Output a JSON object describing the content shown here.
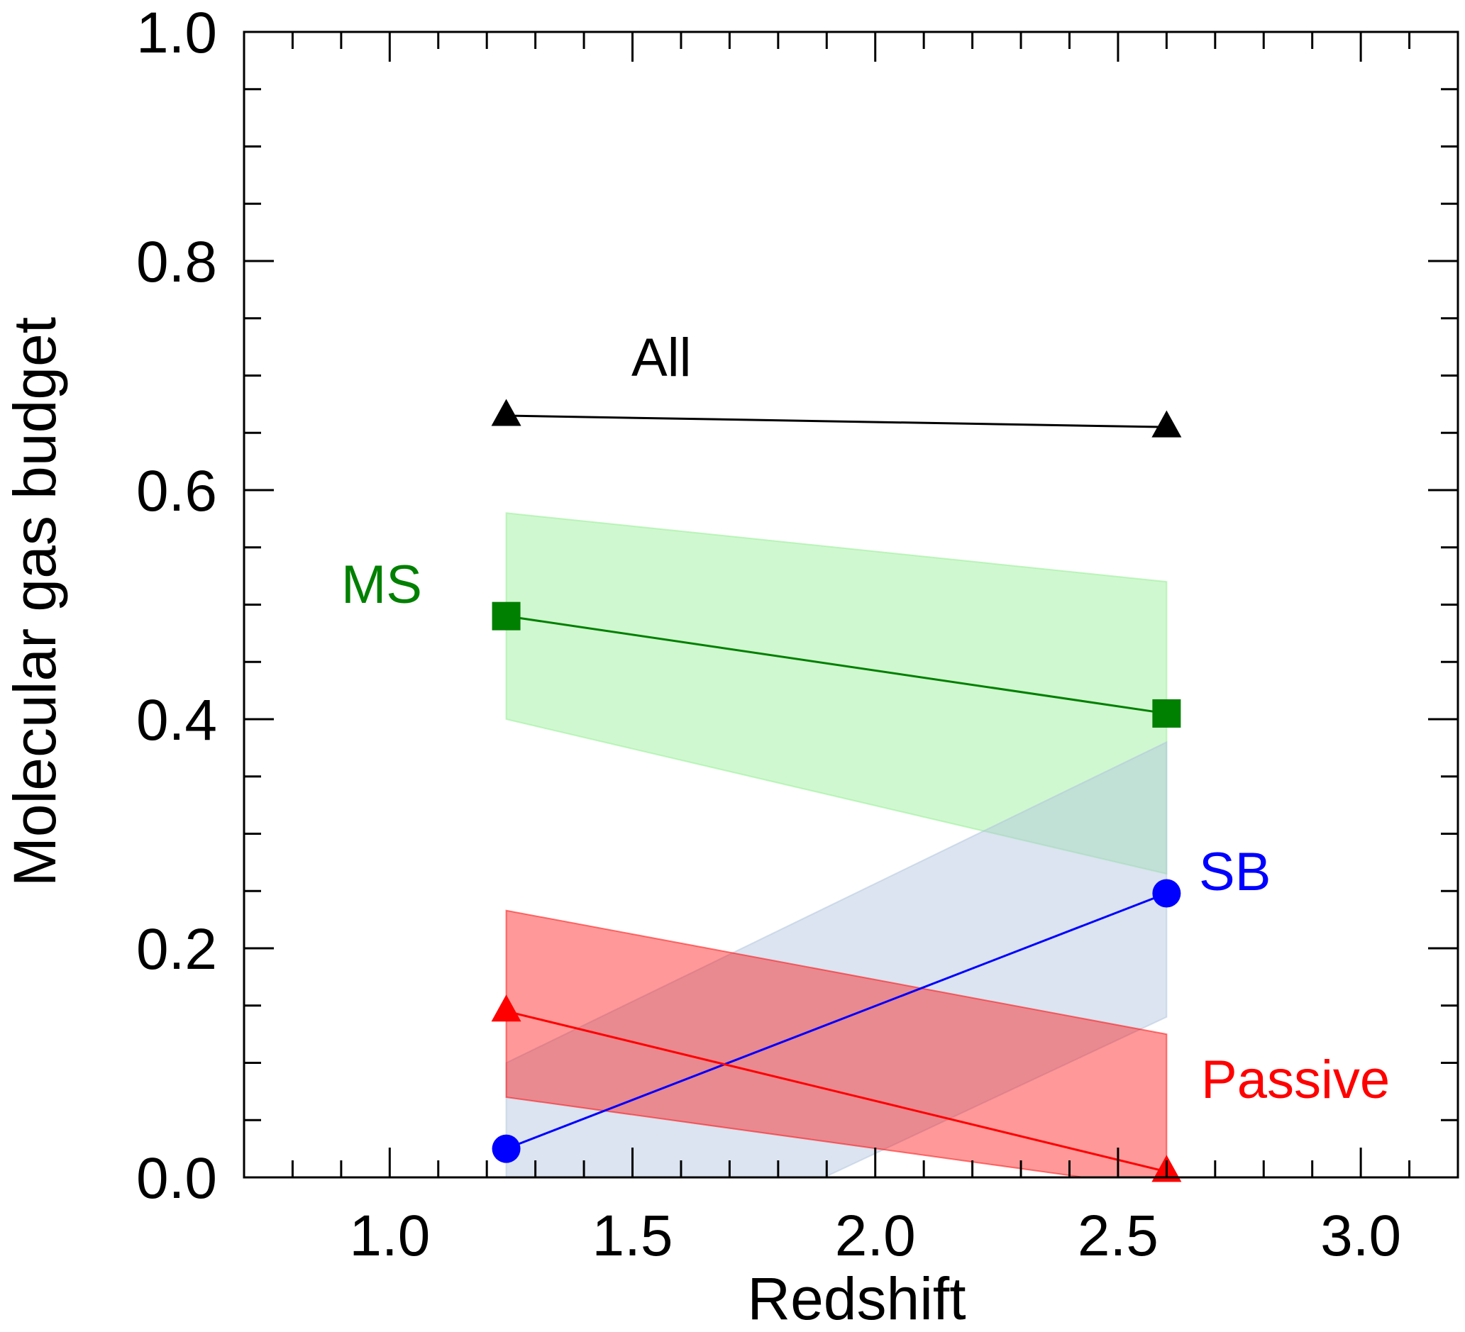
{
  "chart_data": {
    "type": "line",
    "title": "",
    "xlabel": "Redshift",
    "ylabel": "Molecular gas budget",
    "xlim": [
      0.7,
      3.2
    ],
    "ylim": [
      0.0,
      1.0
    ],
    "x_ticks": [
      "1.0",
      "1.5",
      "2.0",
      "2.5",
      "3.0"
    ],
    "y_ticks": [
      "0.0",
      "0.2",
      "0.4",
      "0.6",
      "0.8",
      "1.0"
    ],
    "grid": false,
    "legend": "none",
    "series": [
      {
        "name": "All",
        "color": "#000000",
        "marker": "triangle",
        "x": [
          1.24,
          2.6
        ],
        "y": [
          0.665,
          0.655
        ]
      },
      {
        "name": "MS",
        "color": "#008000",
        "band_color": "#90ee90",
        "marker": "square",
        "x": [
          1.24,
          2.6
        ],
        "y": [
          0.49,
          0.405
        ],
        "band_lower": [
          0.4,
          0.265
        ],
        "band_upper": [
          0.58,
          0.52
        ]
      },
      {
        "name": "SB",
        "color": "#0000ff",
        "band_color": "#b0c4de",
        "marker": "circle",
        "x": [
          1.24,
          2.6
        ],
        "y": [
          0.025,
          0.248
        ],
        "band_lower": [
          -0.13,
          0.14
        ],
        "band_upper": [
          0.1,
          0.38
        ]
      },
      {
        "name": "Passive",
        "color": "#ff0000",
        "band_color": "#ff0000",
        "marker": "triangle",
        "x": [
          1.24,
          2.6
        ],
        "y": [
          0.145,
          0.005
        ],
        "band_lower": [
          0.07,
          -0.01
        ],
        "band_upper": [
          0.233,
          0.125
        ]
      }
    ]
  }
}
